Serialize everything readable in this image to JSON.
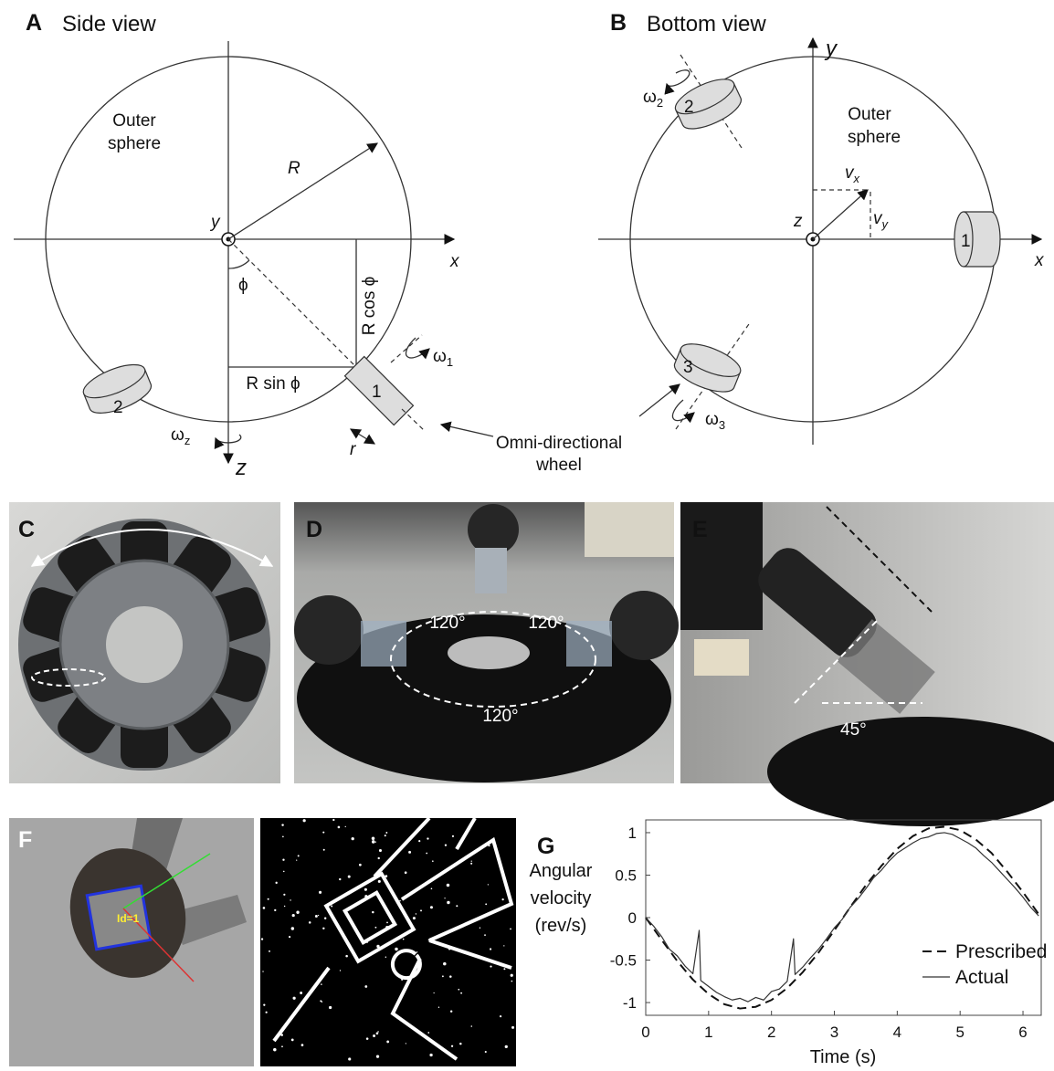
{
  "panel_a": {
    "letter": "A",
    "title": "Side view",
    "outer_sphere": [
      "Outer",
      "sphere"
    ],
    "axis_x": "x",
    "axis_y": "y",
    "axis_z": "z",
    "radius": "R",
    "angle": "ϕ",
    "r_cos": "R cos ϕ",
    "r_sin": "R sin ϕ",
    "wheel_radius": "r",
    "wheels": [
      "1",
      "2"
    ],
    "omega_1": {
      "base": "ω",
      "sub": "1"
    },
    "omega_z": {
      "base": "ω",
      "sub": "z"
    },
    "callout": [
      "Omni-directional",
      "wheel"
    ]
  },
  "panel_b": {
    "letter": "B",
    "title": "Bottom view",
    "outer_sphere": [
      "Outer",
      "sphere"
    ],
    "axis_x": "x",
    "axis_y": "y",
    "axis_z": "z",
    "wheels": [
      "1",
      "2",
      "3"
    ],
    "omega_2": {
      "base": "ω",
      "sub": "2"
    },
    "omega_3": {
      "base": "ω",
      "sub": "3"
    },
    "velocity_x": {
      "base": "v",
      "sub": "x"
    },
    "velocity_y": {
      "base": "v",
      "sub": "y"
    }
  },
  "panel_c": {
    "letter": "C"
  },
  "panel_d": {
    "letter": "D",
    "angles": [
      "120°",
      "120°",
      "120°"
    ]
  },
  "panel_e": {
    "letter": "E",
    "angle": "45°"
  },
  "panel_f": {
    "letter": "F",
    "tag_id": "Id=1"
  },
  "panel_g": {
    "letter": "G"
  },
  "chart_data": {
    "type": "line",
    "xlabel": "Time (s)",
    "ylabel": [
      "Angular",
      "velocity",
      "(rev/s)"
    ],
    "xlim": [
      0,
      6.29
    ],
    "ylim": [
      -1.15,
      1.15
    ],
    "xticks": [
      0,
      1,
      2,
      3,
      4,
      5,
      6
    ],
    "yticks": [
      -1,
      -0.5,
      0,
      0.5,
      1
    ],
    "legend": "lower right",
    "series": [
      {
        "name": "Prescribed",
        "color": "#111111",
        "dash": true,
        "width": 2,
        "x": [
          0,
          0.25,
          0.5,
          0.75,
          1,
          1.25,
          1.5,
          1.75,
          2,
          2.25,
          2.5,
          2.75,
          3,
          3.25,
          3.5,
          3.75,
          4,
          4.25,
          4.5,
          4.75,
          5,
          5.25,
          5.5,
          5.75,
          6,
          6.25
        ],
        "values": [
          0,
          -0.26,
          -0.51,
          -0.73,
          -0.9,
          -1.02,
          -1.07,
          -1.05,
          -0.97,
          -0.83,
          -0.64,
          -0.41,
          -0.15,
          0.12,
          0.38,
          0.61,
          0.81,
          0.96,
          1.05,
          1.07,
          1.03,
          0.92,
          0.76,
          0.54,
          0.3,
          0.04
        ]
      },
      {
        "name": "Actual",
        "color": "#333333",
        "dash": false,
        "width": 1.2,
        "x": [
          0,
          0.125,
          0.25,
          0.375,
          0.5,
          0.625,
          0.75,
          0.85,
          0.875,
          1,
          1.125,
          1.25,
          1.375,
          1.5,
          1.625,
          1.75,
          1.875,
          2,
          2.125,
          2.25,
          2.35,
          2.375,
          2.5,
          2.625,
          2.75,
          2.875,
          3,
          3.125,
          3.25,
          3.375,
          3.5,
          3.625,
          3.75,
          3.875,
          4,
          4.125,
          4.25,
          4.375,
          4.5,
          4.625,
          4.75,
          4.875,
          5,
          5.125,
          5.25,
          5.375,
          5.5,
          5.625,
          5.75,
          5.875,
          6,
          6.125,
          6.25
        ],
        "values": [
          0,
          -0.1,
          -0.22,
          -0.37,
          -0.45,
          -0.57,
          -0.66,
          -0.15,
          -0.74,
          -0.81,
          -0.88,
          -0.93,
          -0.97,
          -0.95,
          -0.99,
          -0.94,
          -0.97,
          -0.87,
          -0.84,
          -0.75,
          -0.25,
          -0.67,
          -0.58,
          -0.47,
          -0.37,
          -0.25,
          -0.12,
          -0.02,
          0.12,
          0.22,
          0.34,
          0.47,
          0.56,
          0.67,
          0.76,
          0.82,
          0.88,
          0.93,
          0.95,
          0.99,
          1.0,
          0.98,
          0.93,
          0.88,
          0.82,
          0.73,
          0.65,
          0.55,
          0.45,
          0.35,
          0.24,
          0.12,
          0.02
        ]
      }
    ]
  }
}
